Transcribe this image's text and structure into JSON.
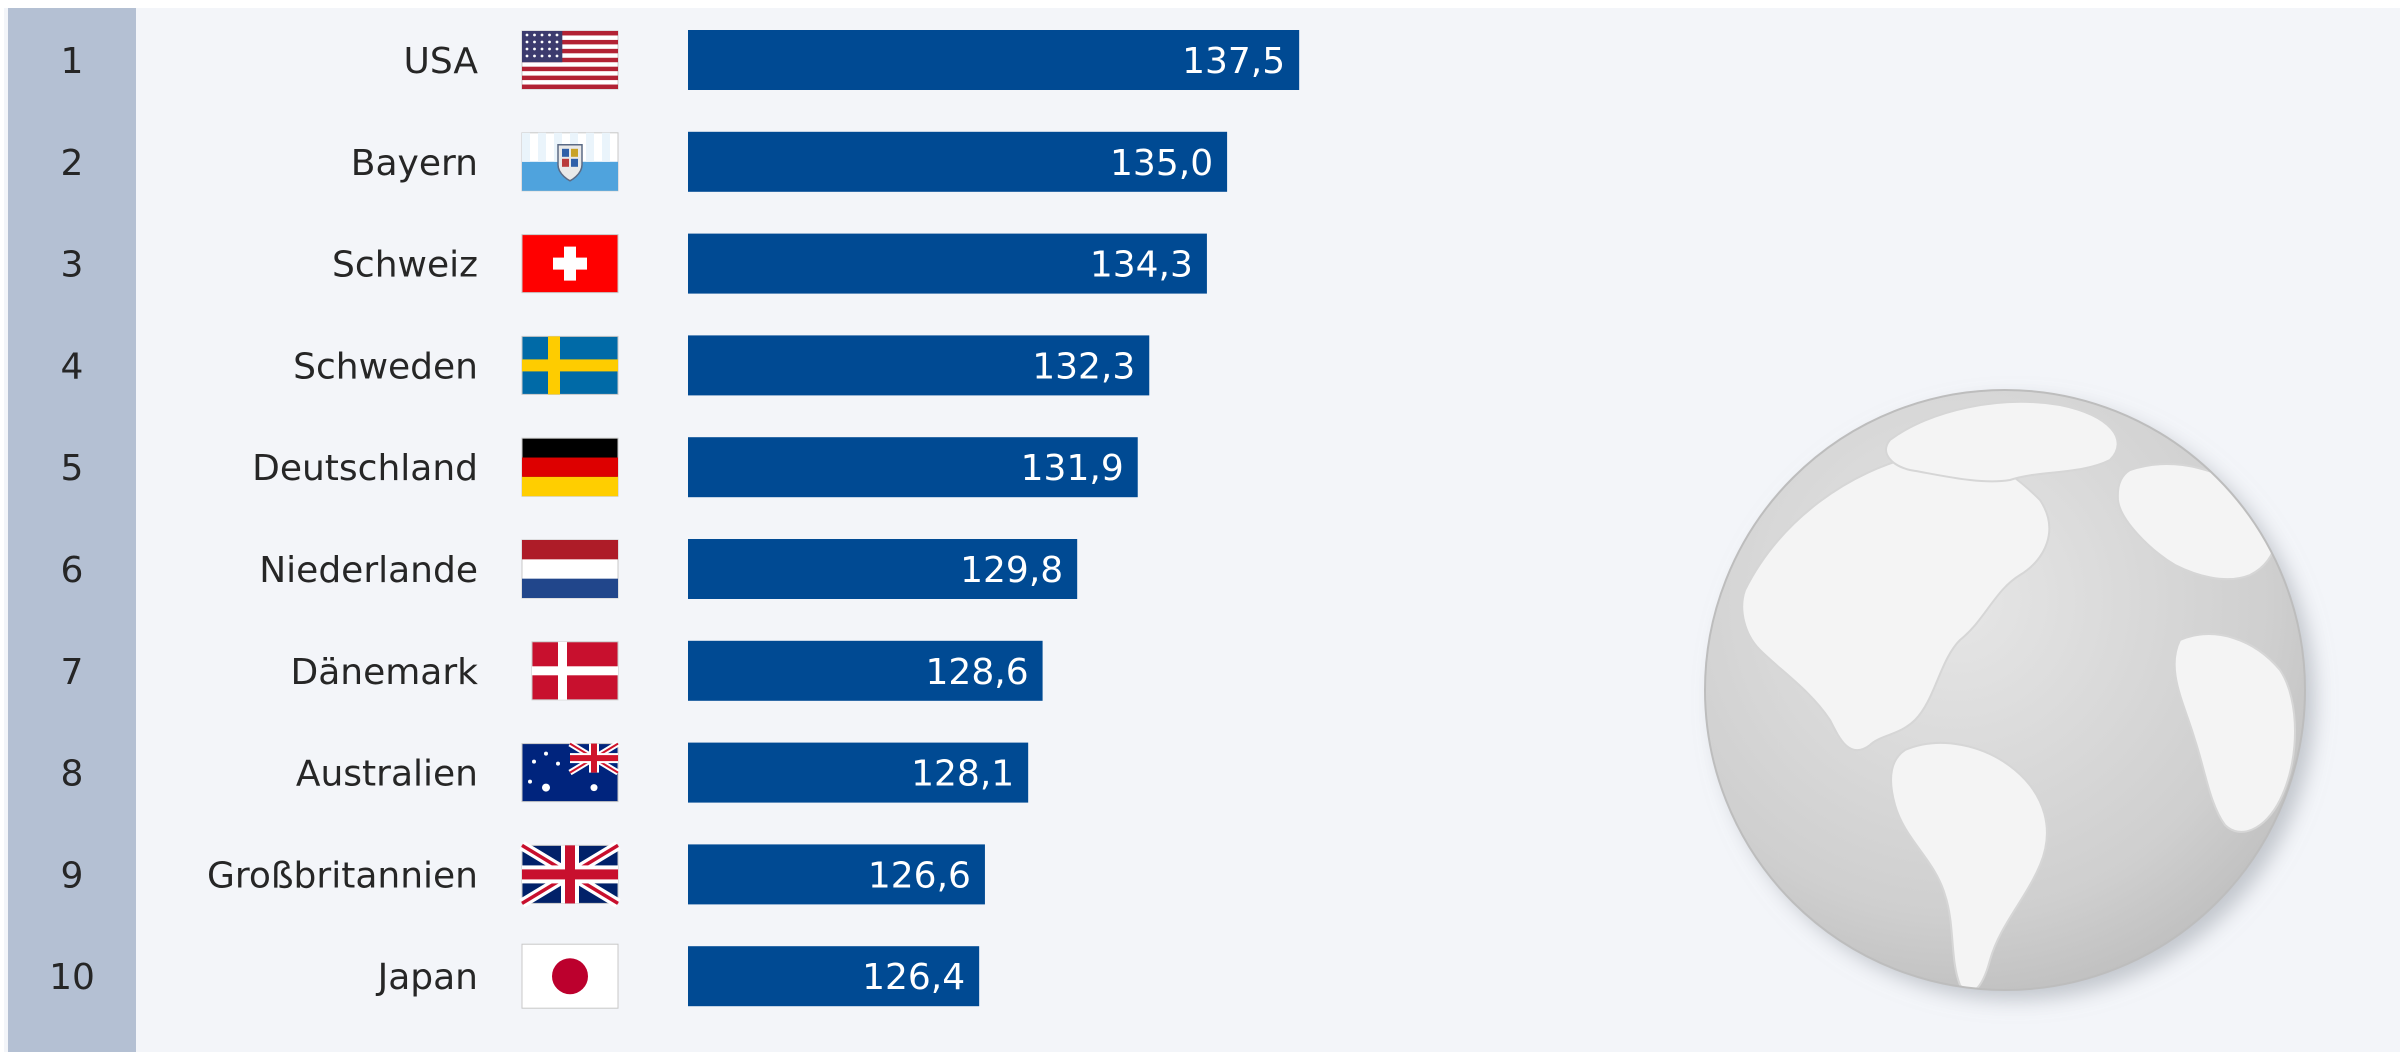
{
  "colors": {
    "bar": "#004A93",
    "rank_strip": "#B4C0D3",
    "panel": "#F3F5F9",
    "label_text": "#262626",
    "value_text": "#FFFFFF",
    "globe": "#C7C7C7"
  },
  "decoration": {
    "globe": "globe-icon"
  },
  "chart_data": {
    "type": "bar",
    "orientation": "horizontal",
    "categories": [
      "USA",
      "Bayern",
      "Schweiz",
      "Schweden",
      "Deutschland",
      "Niederlande",
      "Dänemark",
      "Australien",
      "Großbritannien",
      "Japan"
    ],
    "ranks": [
      "1",
      "2",
      "3",
      "4",
      "5",
      "6",
      "7",
      "8",
      "9",
      "10"
    ],
    "values": [
      137.5,
      135.0,
      134.3,
      132.3,
      131.9,
      129.8,
      128.6,
      128.1,
      126.6,
      126.4
    ],
    "value_labels": [
      "137,5",
      "135,0",
      "134,3",
      "132,3",
      "131,9",
      "129,8",
      "128,6",
      "128,1",
      "126,6",
      "126,4"
    ],
    "flags": [
      "flag-usa-icon",
      "flag-bavaria-icon",
      "flag-switzerland-icon",
      "flag-sweden-icon",
      "flag-germany-icon",
      "flag-netherlands-icon",
      "flag-denmark-icon",
      "flag-australia-icon",
      "flag-uk-icon",
      "flag-japan-icon"
    ],
    "xlim": [
      116.3,
      138.5
    ],
    "grid": false,
    "legend": "none",
    "title": "",
    "xlabel": "",
    "ylabel": ""
  }
}
